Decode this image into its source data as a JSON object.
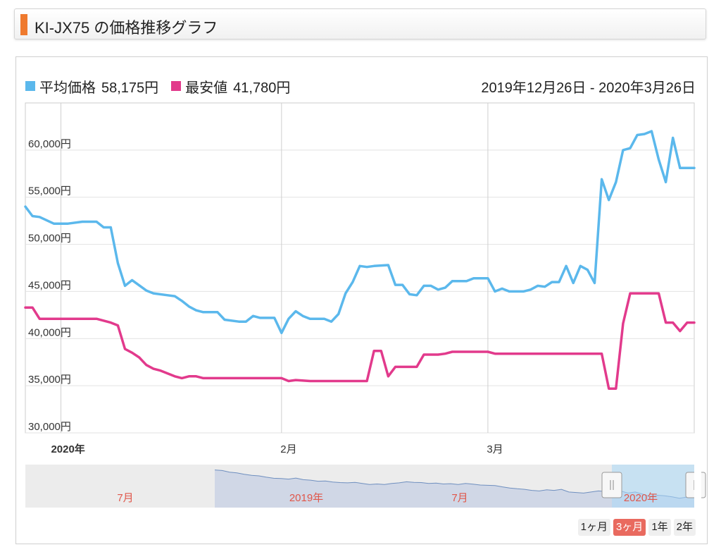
{
  "page": {
    "title": "KI-JX75 の価格推移グラフ",
    "accent_color": "#ef7a2e"
  },
  "legend": {
    "avg": {
      "label": "平均価格",
      "value": "58,175円",
      "color": "#5bb8ec"
    },
    "min": {
      "label": "最安値",
      "value": "41,780円",
      "color": "#e23a8c"
    }
  },
  "date_range": "2019年12月26日 - 2020年3月26日",
  "range_buttons": [
    {
      "label": "1ヶ月",
      "active": false
    },
    {
      "label": "3ヶ月",
      "active": true
    },
    {
      "label": "1年",
      "active": false
    },
    {
      "label": "2年",
      "active": false
    }
  ],
  "chart_data": {
    "type": "line",
    "x_start": "2019-12-26",
    "x_end": "2020-03-26",
    "ylim": [
      30000,
      65000
    ],
    "yticks": [
      30000,
      35000,
      40000,
      45000,
      50000,
      55000,
      60000
    ],
    "ytick_labels": [
      "30,000円",
      "35,000円",
      "40,000円",
      "45,000円",
      "50,000円",
      "55,000円",
      "60,000円"
    ],
    "xticks": [
      {
        "date": "2020-01-01",
        "label": "2020年",
        "bold": true
      },
      {
        "date": "2020-02-01",
        "label": "2月",
        "bold": false
      },
      {
        "date": "2020-03-01",
        "label": "3月",
        "bold": false
      }
    ],
    "vgrid_dates": [
      "2019-12-31",
      "2020-01-31",
      "2020-02-29"
    ],
    "grid": true,
    "series": [
      {
        "name": "平均価格",
        "color": "#5bb8ec",
        "points": [
          [
            "2019-12-26",
            54000
          ],
          [
            "2019-12-27",
            53000
          ],
          [
            "2019-12-28",
            52900
          ],
          [
            "2019-12-30",
            52200
          ],
          [
            "2020-01-01",
            52200
          ],
          [
            "2020-01-03",
            52400
          ],
          [
            "2020-01-05",
            52400
          ],
          [
            "2020-01-06",
            51800
          ],
          [
            "2020-01-07",
            51800
          ],
          [
            "2020-01-08",
            48000
          ],
          [
            "2020-01-09",
            45600
          ],
          [
            "2020-01-10",
            46200
          ],
          [
            "2020-01-12",
            45100
          ],
          [
            "2020-01-13",
            44800
          ],
          [
            "2020-01-15",
            44600
          ],
          [
            "2020-01-16",
            44500
          ],
          [
            "2020-01-17",
            44000
          ],
          [
            "2020-01-18",
            43400
          ],
          [
            "2020-01-19",
            43000
          ],
          [
            "2020-01-20",
            42800
          ],
          [
            "2020-01-22",
            42800
          ],
          [
            "2020-01-23",
            42000
          ],
          [
            "2020-01-25",
            41800
          ],
          [
            "2020-01-26",
            41800
          ],
          [
            "2020-01-27",
            42400
          ],
          [
            "2020-01-28",
            42200
          ],
          [
            "2020-01-30",
            42200
          ],
          [
            "2020-01-31",
            40600
          ],
          [
            "2020-02-01",
            42100
          ],
          [
            "2020-02-02",
            42900
          ],
          [
            "2020-02-03",
            42400
          ],
          [
            "2020-02-04",
            42100
          ],
          [
            "2020-02-06",
            42100
          ],
          [
            "2020-02-07",
            41800
          ],
          [
            "2020-02-08",
            42600
          ],
          [
            "2020-02-09",
            44800
          ],
          [
            "2020-02-10",
            46000
          ],
          [
            "2020-02-11",
            47700
          ],
          [
            "2020-02-12",
            47600
          ],
          [
            "2020-02-13",
            47700
          ],
          [
            "2020-02-15",
            47800
          ],
          [
            "2020-02-16",
            45700
          ],
          [
            "2020-02-17",
            45700
          ],
          [
            "2020-02-18",
            44700
          ],
          [
            "2020-02-19",
            44600
          ],
          [
            "2020-02-20",
            45600
          ],
          [
            "2020-02-21",
            45600
          ],
          [
            "2020-02-22",
            45200
          ],
          [
            "2020-02-23",
            45400
          ],
          [
            "2020-02-24",
            46100
          ],
          [
            "2020-02-26",
            46100
          ],
          [
            "2020-02-27",
            46400
          ],
          [
            "2020-02-29",
            46400
          ],
          [
            "2020-03-01",
            45000
          ],
          [
            "2020-03-02",
            45300
          ],
          [
            "2020-03-03",
            45000
          ],
          [
            "2020-03-05",
            45000
          ],
          [
            "2020-03-06",
            45200
          ],
          [
            "2020-03-07",
            45600
          ],
          [
            "2020-03-08",
            45500
          ],
          [
            "2020-03-09",
            46000
          ],
          [
            "2020-03-10",
            46000
          ],
          [
            "2020-03-11",
            47700
          ],
          [
            "2020-03-12",
            45900
          ],
          [
            "2020-03-13",
            47700
          ],
          [
            "2020-03-14",
            47300
          ],
          [
            "2020-03-15",
            45900
          ],
          [
            "2020-03-16",
            56900
          ],
          [
            "2020-03-17",
            54700
          ],
          [
            "2020-03-18",
            56600
          ],
          [
            "2020-03-19",
            60000
          ],
          [
            "2020-03-20",
            60200
          ],
          [
            "2020-03-21",
            61600
          ],
          [
            "2020-03-22",
            61700
          ],
          [
            "2020-03-23",
            62000
          ],
          [
            "2020-03-24",
            59000
          ],
          [
            "2020-03-25",
            56600
          ],
          [
            "2020-03-26",
            61300
          ],
          [
            "2020-03-27",
            58100
          ],
          [
            "2020-03-29",
            58100
          ]
        ]
      },
      {
        "name": "最安値",
        "color": "#e23a8c",
        "points": [
          [
            "2019-12-26",
            43300
          ],
          [
            "2019-12-27",
            43300
          ],
          [
            "2019-12-28",
            42100
          ],
          [
            "2020-01-01",
            42100
          ],
          [
            "2020-01-05",
            42100
          ],
          [
            "2020-01-07",
            41700
          ],
          [
            "2020-01-08",
            41400
          ],
          [
            "2020-01-09",
            38900
          ],
          [
            "2020-01-10",
            38500
          ],
          [
            "2020-01-11",
            38000
          ],
          [
            "2020-01-12",
            37200
          ],
          [
            "2020-01-13",
            36800
          ],
          [
            "2020-01-14",
            36600
          ],
          [
            "2020-01-15",
            36300
          ],
          [
            "2020-01-16",
            36000
          ],
          [
            "2020-01-17",
            35800
          ],
          [
            "2020-01-18",
            36000
          ],
          [
            "2020-01-19",
            36000
          ],
          [
            "2020-01-20",
            35800
          ],
          [
            "2020-01-31",
            35800
          ],
          [
            "2020-02-01",
            35500
          ],
          [
            "2020-02-02",
            35600
          ],
          [
            "2020-02-04",
            35500
          ],
          [
            "2020-02-12",
            35500
          ],
          [
            "2020-02-13",
            38700
          ],
          [
            "2020-02-14",
            38700
          ],
          [
            "2020-02-15",
            36000
          ],
          [
            "2020-02-16",
            37000
          ],
          [
            "2020-02-19",
            37000
          ],
          [
            "2020-02-20",
            38300
          ],
          [
            "2020-02-22",
            38300
          ],
          [
            "2020-02-23",
            38400
          ],
          [
            "2020-02-24",
            38600
          ],
          [
            "2020-02-29",
            38600
          ],
          [
            "2020-03-01",
            38400
          ],
          [
            "2020-03-16",
            38400
          ],
          [
            "2020-03-17",
            34700
          ],
          [
            "2020-03-18",
            34700
          ],
          [
            "2020-03-19",
            41600
          ],
          [
            "2020-03-20",
            44800
          ],
          [
            "2020-03-24",
            44800
          ],
          [
            "2020-03-25",
            41700
          ],
          [
            "2020-03-26",
            41700
          ],
          [
            "2020-03-27",
            40800
          ],
          [
            "2020-03-28",
            41700
          ],
          [
            "2020-03-29",
            41700
          ]
        ]
      }
    ],
    "navigator": {
      "labels": [
        "7月",
        "2019年",
        "7月",
        "2020年"
      ],
      "label_color": "#e0564a",
      "fill_color": "#d0d7e6",
      "line_color": "#6f8fbf",
      "selection_color": "#a9d8f7",
      "series_values": [
        58000,
        57800,
        57200,
        56900,
        56400,
        56000,
        55800,
        55300,
        54900,
        54800,
        54600,
        55000,
        54400,
        54200,
        53800,
        53900,
        53500,
        53300,
        53200,
        53400,
        53000,
        52600,
        52800,
        52600,
        53000,
        53200,
        53600,
        53400,
        53300,
        53000,
        53100,
        52800,
        52900,
        52600,
        53000,
        52700,
        52400,
        52300,
        52200,
        51700,
        51300,
        51000,
        50800,
        50400,
        50200,
        50600,
        50400,
        50800,
        49800,
        49600,
        49400,
        49800,
        50200,
        50000,
        49800,
        50200,
        49400,
        49800,
        49000,
        48200,
        48600,
        48400,
        48000,
        47500,
        47900,
        49700
      ]
    }
  }
}
